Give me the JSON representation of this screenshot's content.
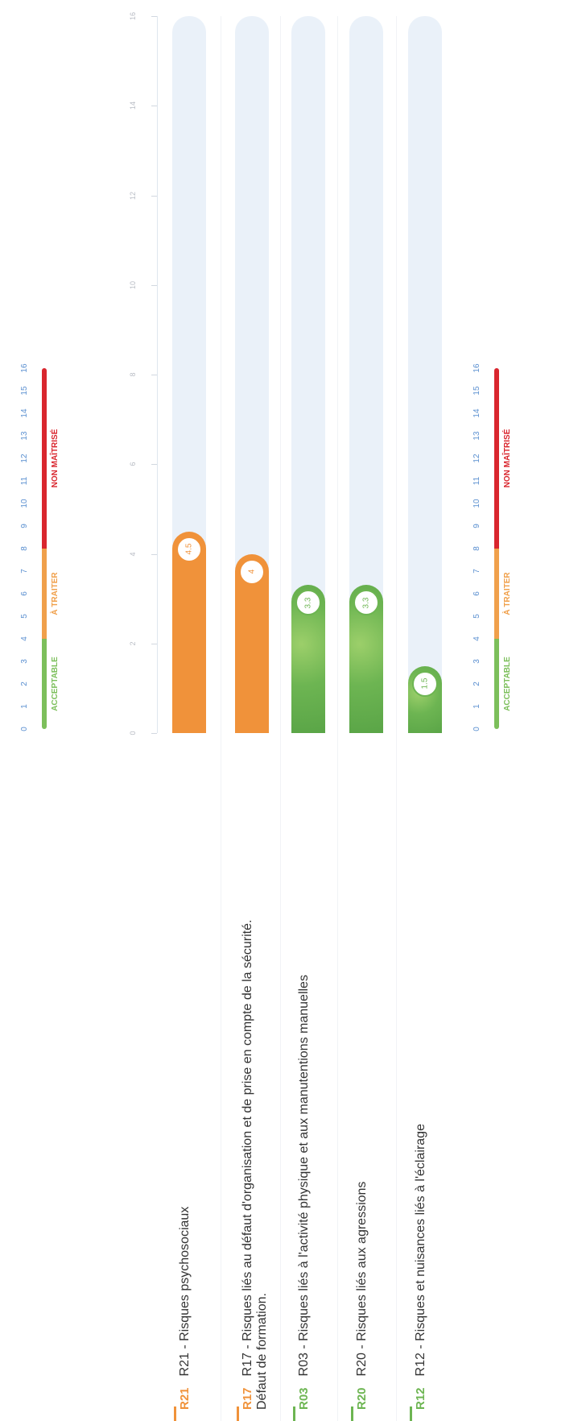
{
  "scale": {
    "ticks": [
      "0",
      "1",
      "2",
      "3",
      "4",
      "5",
      "6",
      "7",
      "8",
      "9",
      "10",
      "11",
      "12",
      "13",
      "14",
      "15",
      "16"
    ],
    "zones": [
      {
        "label": "ACCEPTABLE",
        "from": 0,
        "to": 4,
        "color": "#7cbf5b"
      },
      {
        "label": "À TRAITER",
        "from": 4,
        "to": 8,
        "color": "#f0a04b"
      },
      {
        "label": "NON MAÎTRISÉ",
        "from": 8,
        "to": 16,
        "color": "#d9262e"
      }
    ]
  },
  "chart_data": {
    "type": "bar",
    "orientation": "horizontal",
    "xlim": [
      0,
      16
    ],
    "axis_ticks": [
      "0",
      "2",
      "4",
      "6",
      "8",
      "10",
      "12",
      "14",
      "16"
    ],
    "categories": [
      {
        "code": "R21",
        "label": "R21 - Risques psychosociaux",
        "value": 4.5,
        "display": "4.5",
        "color": "#f0923a"
      },
      {
        "code": "R17",
        "label": "R17 - Risques liés au défaut d'organisation et de prise en compte de la sécurité. Défaut de formation.",
        "value": 4,
        "display": "4",
        "color": "#f0923a"
      },
      {
        "code": "R03",
        "label": "R03 - Risques liés à l'activité physique et aux manutentions manuelles",
        "value": 3.3,
        "display": "3.3",
        "color": "#6db552"
      },
      {
        "code": "R20",
        "label": "R20 - Risques liés aux agressions",
        "value": 3.3,
        "display": "3.3",
        "color": "#6db552"
      },
      {
        "code": "R12",
        "label": "R12 - Risques et nuisances liés à l'éclairage",
        "value": 1.5,
        "display": "1.5",
        "color": "#6db552"
      }
    ],
    "track_color": "#eaf1f9"
  }
}
